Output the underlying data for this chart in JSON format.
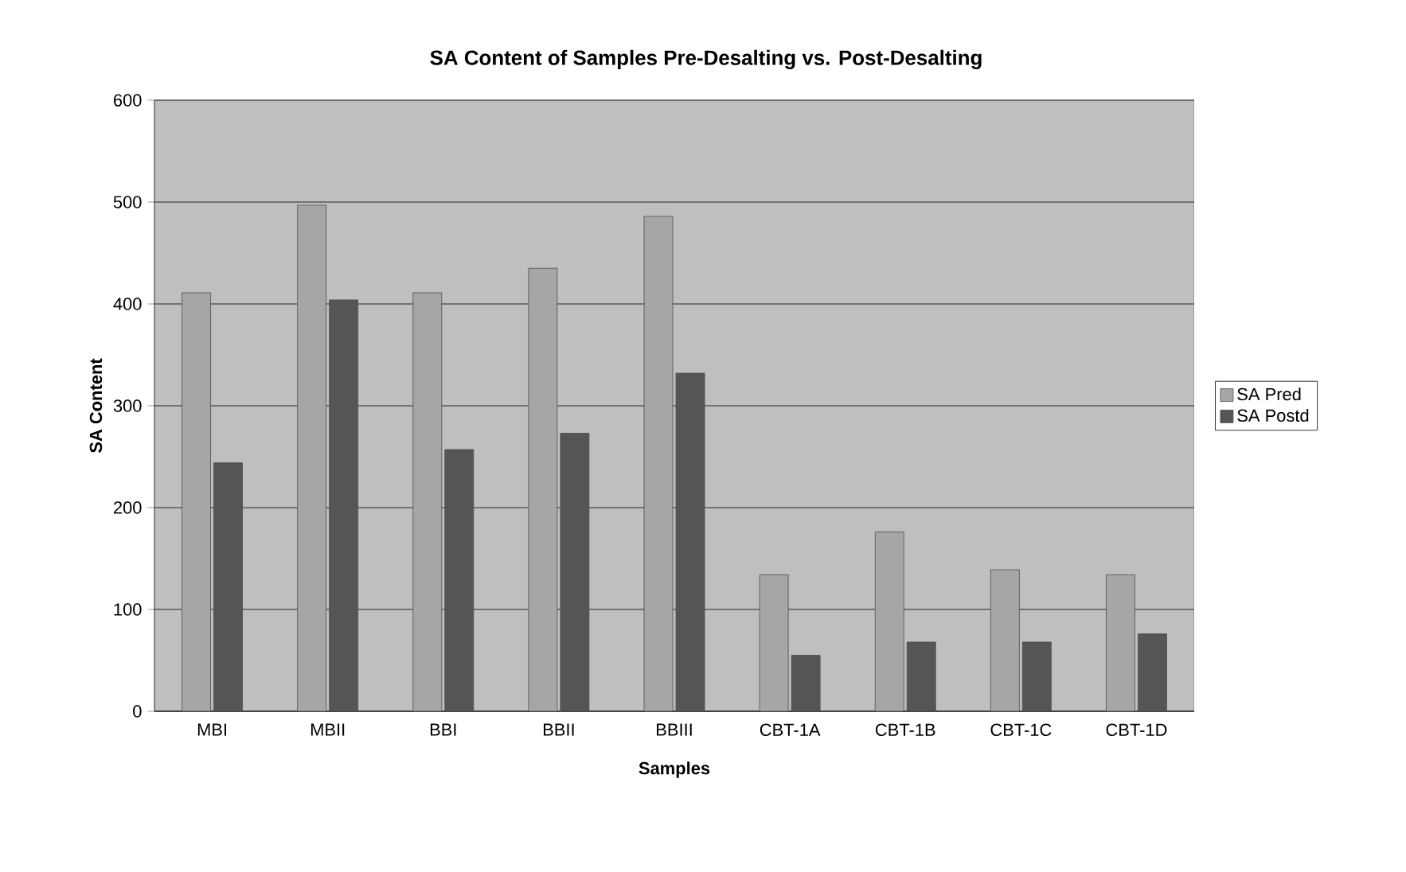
{
  "chart_data": {
    "type": "bar",
    "title": "SA Content of Samples Pre-Desalting vs. Post-Desalting",
    "xlabel": "Samples",
    "ylabel": "SA Content",
    "categories": [
      "MBI",
      "MBII",
      "BBI",
      "BBII",
      "BBIII",
      "CBT-1A",
      "CBT-1B",
      "CBT-1C",
      "CBT-1D"
    ],
    "series": [
      {
        "name": "SA Pred",
        "color": "#a6a6a6",
        "values": [
          411,
          497,
          411,
          435,
          486,
          134,
          176,
          139,
          134
        ]
      },
      {
        "name": "SA Postd",
        "color": "#555555",
        "values": [
          244,
          404,
          257,
          273,
          332,
          55,
          68,
          68,
          76
        ]
      }
    ],
    "ylim": [
      0,
      600
    ],
    "yticks": [
      0,
      100,
      200,
      300,
      400,
      500,
      600
    ],
    "grid": "y",
    "legend": "right"
  }
}
